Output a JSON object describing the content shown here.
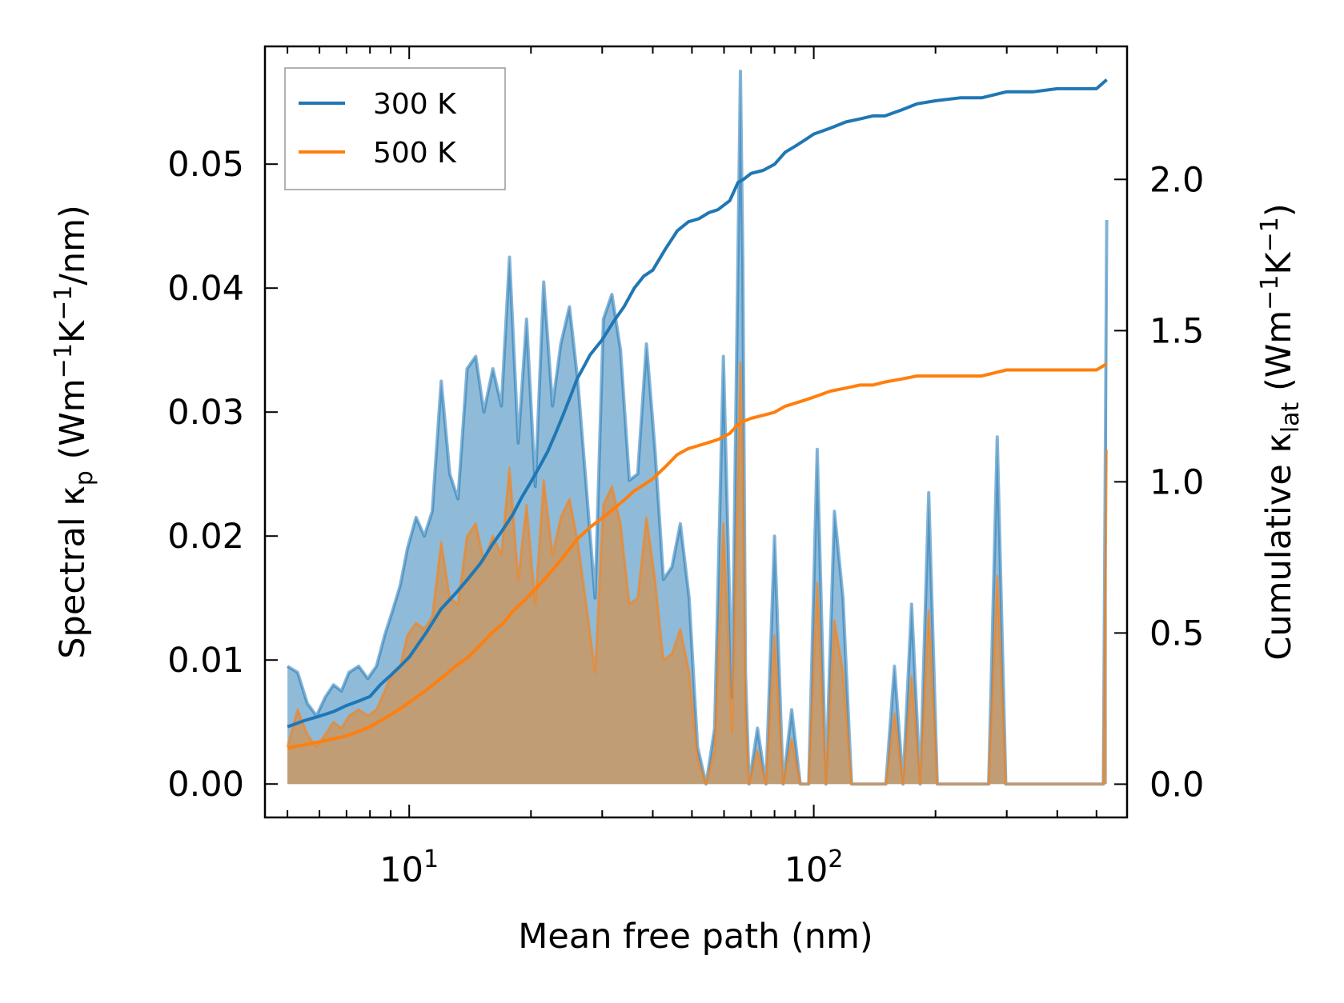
{
  "chart_data": {
    "type": "area",
    "xlabel": "Mean free path (nm)",
    "ylabel_left": {
      "main": "Spectral κ",
      "sub": "p",
      "unit_prefix": " (Wm",
      "exp1": "−1",
      "mid": "K",
      "exp2": "−1",
      "unit_suffix": "/nm)"
    },
    "ylabel_right": {
      "main": "Cumulative κ",
      "sub": "lat",
      "unit_prefix": " (Wm",
      "exp1": "−1",
      "mid": "K",
      "exp2": "−1",
      "unit_suffix": ")"
    },
    "x_scale": "log",
    "xlim": [
      4.4,
      595
    ],
    "xticks": [
      {
        "value": 10,
        "base": "10",
        "exp": "1"
      },
      {
        "value": 100,
        "base": "10",
        "exp": "2"
      }
    ],
    "ylim_left": [
      -0.0027,
      0.0595
    ],
    "ylim_right": [
      -0.11,
      2.44
    ],
    "yticks_left": [
      "0.00",
      "0.01",
      "0.02",
      "0.03",
      "0.04",
      "0.05"
    ],
    "yticks_right": [
      "0.0",
      "0.5",
      "1.0",
      "1.5",
      "2.0"
    ],
    "legend": {
      "placement": "top-left",
      "entries": [
        "300 K",
        "500 K"
      ]
    },
    "colors": {
      "s300": "#1f77b4",
      "s500": "#ff7f0e",
      "s500_fill": "#c49a6c"
    },
    "spectral": {
      "x": [
        5,
        5.3,
        5.6,
        5.9,
        6.2,
        6.5,
        6.8,
        7.1,
        7.5,
        7.9,
        8.3,
        8.7,
        9.1,
        9.5,
        9.9,
        10.4,
        10.9,
        11.4,
        12,
        12.6,
        13.2,
        13.9,
        14.6,
        15.3,
        16.1,
        16.9,
        17.7,
        18.6,
        19.5,
        20.5,
        21.5,
        22.6,
        23.7,
        24.9,
        26.1,
        27.4,
        28.8,
        30.2,
        31.7,
        33.3,
        35,
        36.7,
        38.6,
        40.5,
        42.5,
        44.6,
        46.8,
        49.2,
        51.6,
        54.2,
        56.9,
        59.8,
        62.8,
        65.9,
        66.8,
        67.8,
        69.2,
        72.6,
        76.2,
        80,
        84,
        88.2,
        92.6,
        97.2,
        102,
        107.2,
        112.5,
        118.1,
        124,
        130.2,
        136.7,
        143.6,
        150.8,
        158.3,
        166.2,
        174.5,
        183.2,
        192.4,
        202,
        212.1,
        222.7,
        233.8,
        245.5,
        257.8,
        270.7,
        284.2,
        298.4,
        313.3,
        329,
        345.5,
        362.8,
        380.9,
        400,
        420,
        441,
        463,
        486.2,
        510.5,
        520,
        530
      ],
      "k300": [
        0.0095,
        0.009,
        0.0065,
        0.0055,
        0.007,
        0.008,
        0.0075,
        0.009,
        0.0095,
        0.0085,
        0.0095,
        0.012,
        0.014,
        0.016,
        0.019,
        0.0215,
        0.02,
        0.022,
        0.0325,
        0.025,
        0.023,
        0.0335,
        0.0345,
        0.03,
        0.0335,
        0.0305,
        0.0425,
        0.0275,
        0.0375,
        0.024,
        0.0405,
        0.0305,
        0.0355,
        0.0385,
        0.0325,
        0.024,
        0.015,
        0.0375,
        0.0395,
        0.035,
        0.0245,
        0.025,
        0.0355,
        0.027,
        0.0165,
        0.0175,
        0.021,
        0.015,
        0.003,
        0.0,
        0.0045,
        0.0345,
        0.007,
        0.0575,
        0.042,
        0.009,
        0.0,
        0.0045,
        0.0,
        0.02,
        0.0,
        0.006,
        0.0,
        0.0,
        0.027,
        0.0,
        0.022,
        0.015,
        0.0,
        0.0,
        0.0,
        0.0,
        0.0,
        0.0095,
        0.0,
        0.0145,
        0.0,
        0.0235,
        0.0,
        0.0,
        0.0,
        0.0,
        0.0,
        0.0,
        0.0,
        0.028,
        0.0,
        0.0,
        0.0,
        0.0,
        0.0,
        0.0,
        0.0,
        0.0,
        0.0,
        0.0,
        0.0,
        0.0,
        0.0,
        0.0455
      ],
      "k500": [
        0.003,
        0.006,
        0.004,
        0.003,
        0.004,
        0.005,
        0.0045,
        0.0055,
        0.006,
        0.0055,
        0.006,
        0.0075,
        0.009,
        0.0095,
        0.012,
        0.013,
        0.0125,
        0.0135,
        0.0195,
        0.015,
        0.0145,
        0.02,
        0.021,
        0.018,
        0.02,
        0.0185,
        0.0255,
        0.0165,
        0.0225,
        0.0145,
        0.0245,
        0.0185,
        0.0215,
        0.023,
        0.0195,
        0.0145,
        0.009,
        0.0225,
        0.024,
        0.021,
        0.0145,
        0.015,
        0.0215,
        0.0165,
        0.01,
        0.0105,
        0.0125,
        0.009,
        0.002,
        0.0,
        0.0027,
        0.021,
        0.0042,
        0.034,
        0.0255,
        0.0055,
        0.0,
        0.0027,
        0.0,
        0.012,
        0.0,
        0.0036,
        0.0,
        0.0,
        0.0162,
        0.0,
        0.0132,
        0.009,
        0.0,
        0.0,
        0.0,
        0.0,
        0.0,
        0.0057,
        0.0,
        0.0087,
        0.0,
        0.014,
        0.0,
        0.0,
        0.0,
        0.0,
        0.0,
        0.0,
        0.0,
        0.0168,
        0.0,
        0.0,
        0.0,
        0.0,
        0.0,
        0.0,
        0.0,
        0.0,
        0.0,
        0.0,
        0.0,
        0.0,
        0.0,
        0.027
      ]
    },
    "cumulative": {
      "x300": [
        5,
        5.5,
        6,
        6.5,
        7,
        7.5,
        8,
        8.5,
        9,
        9.5,
        10,
        11,
        12,
        13,
        14,
        15,
        16,
        17,
        18,
        19,
        20,
        21,
        22,
        23,
        24,
        25,
        26,
        27,
        28,
        30,
        32,
        34,
        36,
        38,
        40,
        43,
        46,
        49,
        52,
        55,
        58,
        62,
        65,
        67,
        70,
        75,
        80,
        85,
        90,
        95,
        100,
        110,
        120,
        130,
        140,
        150,
        165,
        180,
        200,
        230,
        260,
        300,
        350,
        400,
        500,
        530
      ],
      "c300": [
        0.19,
        0.21,
        0.225,
        0.24,
        0.26,
        0.275,
        0.29,
        0.33,
        0.36,
        0.39,
        0.42,
        0.5,
        0.58,
        0.63,
        0.68,
        0.73,
        0.79,
        0.84,
        0.89,
        0.95,
        1.0,
        1.05,
        1.1,
        1.16,
        1.22,
        1.28,
        1.34,
        1.38,
        1.42,
        1.47,
        1.53,
        1.58,
        1.64,
        1.68,
        1.7,
        1.77,
        1.83,
        1.86,
        1.87,
        1.89,
        1.9,
        1.93,
        1.99,
        2.0,
        2.02,
        2.03,
        2.05,
        2.09,
        2.11,
        2.13,
        2.15,
        2.17,
        2.19,
        2.2,
        2.21,
        2.21,
        2.23,
        2.25,
        2.26,
        2.27,
        2.27,
        2.29,
        2.29,
        2.3,
        2.3,
        2.33
      ],
      "x500": [
        5,
        5.5,
        6,
        6.5,
        7,
        7.5,
        8,
        8.5,
        9,
        9.5,
        10,
        11,
        12,
        13,
        14,
        15,
        16,
        17,
        18,
        19,
        20,
        21,
        22,
        23,
        24,
        25,
        26,
        27,
        28,
        30,
        32,
        34,
        36,
        38,
        40,
        43,
        46,
        49,
        52,
        55,
        58,
        62,
        65,
        67,
        70,
        75,
        80,
        85,
        90,
        95,
        100,
        110,
        120,
        130,
        140,
        150,
        165,
        180,
        200,
        230,
        260,
        300,
        350,
        400,
        500,
        530
      ],
      "c500": [
        0.12,
        0.13,
        0.14,
        0.15,
        0.16,
        0.175,
        0.19,
        0.21,
        0.23,
        0.25,
        0.27,
        0.31,
        0.35,
        0.39,
        0.42,
        0.46,
        0.5,
        0.53,
        0.57,
        0.6,
        0.63,
        0.66,
        0.69,
        0.72,
        0.75,
        0.78,
        0.81,
        0.83,
        0.85,
        0.88,
        0.91,
        0.94,
        0.97,
        0.99,
        1.01,
        1.05,
        1.09,
        1.11,
        1.12,
        1.13,
        1.14,
        1.16,
        1.19,
        1.2,
        1.21,
        1.22,
        1.23,
        1.25,
        1.26,
        1.27,
        1.28,
        1.3,
        1.31,
        1.32,
        1.32,
        1.33,
        1.34,
        1.35,
        1.35,
        1.35,
        1.35,
        1.37,
        1.37,
        1.37,
        1.37,
        1.39
      ]
    }
  }
}
